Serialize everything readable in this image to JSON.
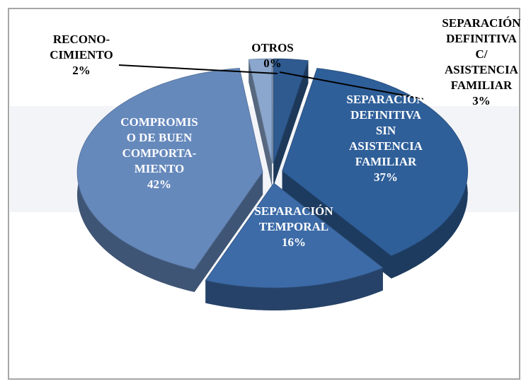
{
  "chart_data": {
    "type": "pie",
    "categories": [
      "OTROS",
      "SEPARACIÓN DEFINITIVA C/ ASISTENCIA FAMILIAR",
      "SEPARACIÓN DEFINITIVA SIN ASISTENCIA FAMILIAR",
      "SEPARACIÓN TEMPORAL",
      "COMPROMISO DE BUEN COMPORTA-MIENTO",
      "RECONO-CIMIENTO"
    ],
    "values": [
      0,
      3,
      37,
      16,
      42,
      2
    ],
    "value_labels": [
      "0%",
      "3%",
      "37%",
      "16%",
      "42%",
      "2%"
    ],
    "colors": [
      "#2b5386",
      "#2e5a90",
      "#2f5f99",
      "#3d6ba7",
      "#6689bc",
      "#8ba7cd"
    ]
  }
}
